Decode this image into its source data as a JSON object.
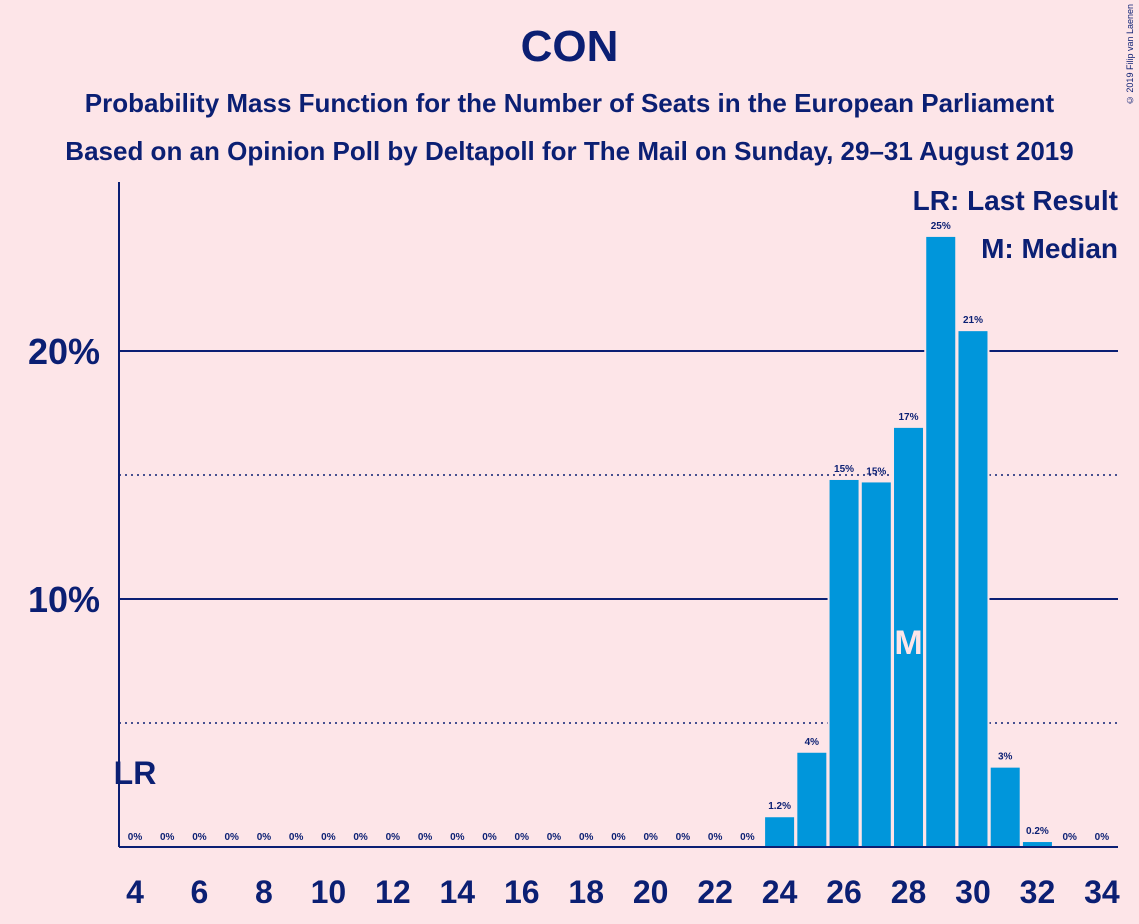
{
  "title": "CON",
  "subtitle1": "Probability Mass Function for the Number of Seats in the European Parliament",
  "subtitle2": "Based on an Opinion Poll by Deltapoll for The Mail on Sunday, 29–31 August 2019",
  "copyright": "© 2019 Filip van Laenen",
  "legend": {
    "lr": "LR: Last Result",
    "median": "M: Median"
  },
  "colors": {
    "bar": "#0096DB",
    "axis": "#0B1F73",
    "background": "#FDE5E8"
  },
  "chart_data": {
    "type": "bar",
    "x": [
      4,
      5,
      6,
      7,
      8,
      9,
      10,
      11,
      12,
      13,
      14,
      15,
      16,
      17,
      18,
      19,
      20,
      21,
      22,
      23,
      24,
      25,
      26,
      27,
      28,
      29,
      30,
      31,
      32,
      33,
      34
    ],
    "values": [
      0,
      0,
      0,
      0,
      0,
      0,
      0,
      0,
      0,
      0,
      0,
      0,
      0,
      0,
      0,
      0,
      0,
      0,
      0,
      0,
      1.2,
      3.8,
      14.8,
      14.7,
      16.9,
      24.6,
      20.8,
      3.2,
      0.2,
      0,
      0
    ],
    "data_labels": [
      "0%",
      "0%",
      "0%",
      "0%",
      "0%",
      "0%",
      "0%",
      "0%",
      "0%",
      "0%",
      "0%",
      "0%",
      "0%",
      "0%",
      "0%",
      "0%",
      "0%",
      "0%",
      "0%",
      "0%",
      "1.2%",
      "4%",
      "15%",
      "15%",
      "17%",
      "25%",
      "21%",
      "3%",
      "0.2%",
      "0%",
      "0%"
    ],
    "x_tick_labels": [
      "4",
      "6",
      "8",
      "10",
      "12",
      "14",
      "16",
      "18",
      "20",
      "22",
      "24",
      "26",
      "28",
      "30",
      "32",
      "34"
    ],
    "y_tick_labels": [
      {
        "value": 10,
        "label": "10%"
      },
      {
        "value": 20,
        "label": "20%"
      }
    ],
    "y_minor_gridlines": [
      5,
      15
    ],
    "ylim": [
      0,
      26.9
    ],
    "last_result": {
      "x": 4,
      "label": "LR"
    },
    "median": {
      "x": 28,
      "label": "M"
    },
    "legend_position": "top-right"
  }
}
